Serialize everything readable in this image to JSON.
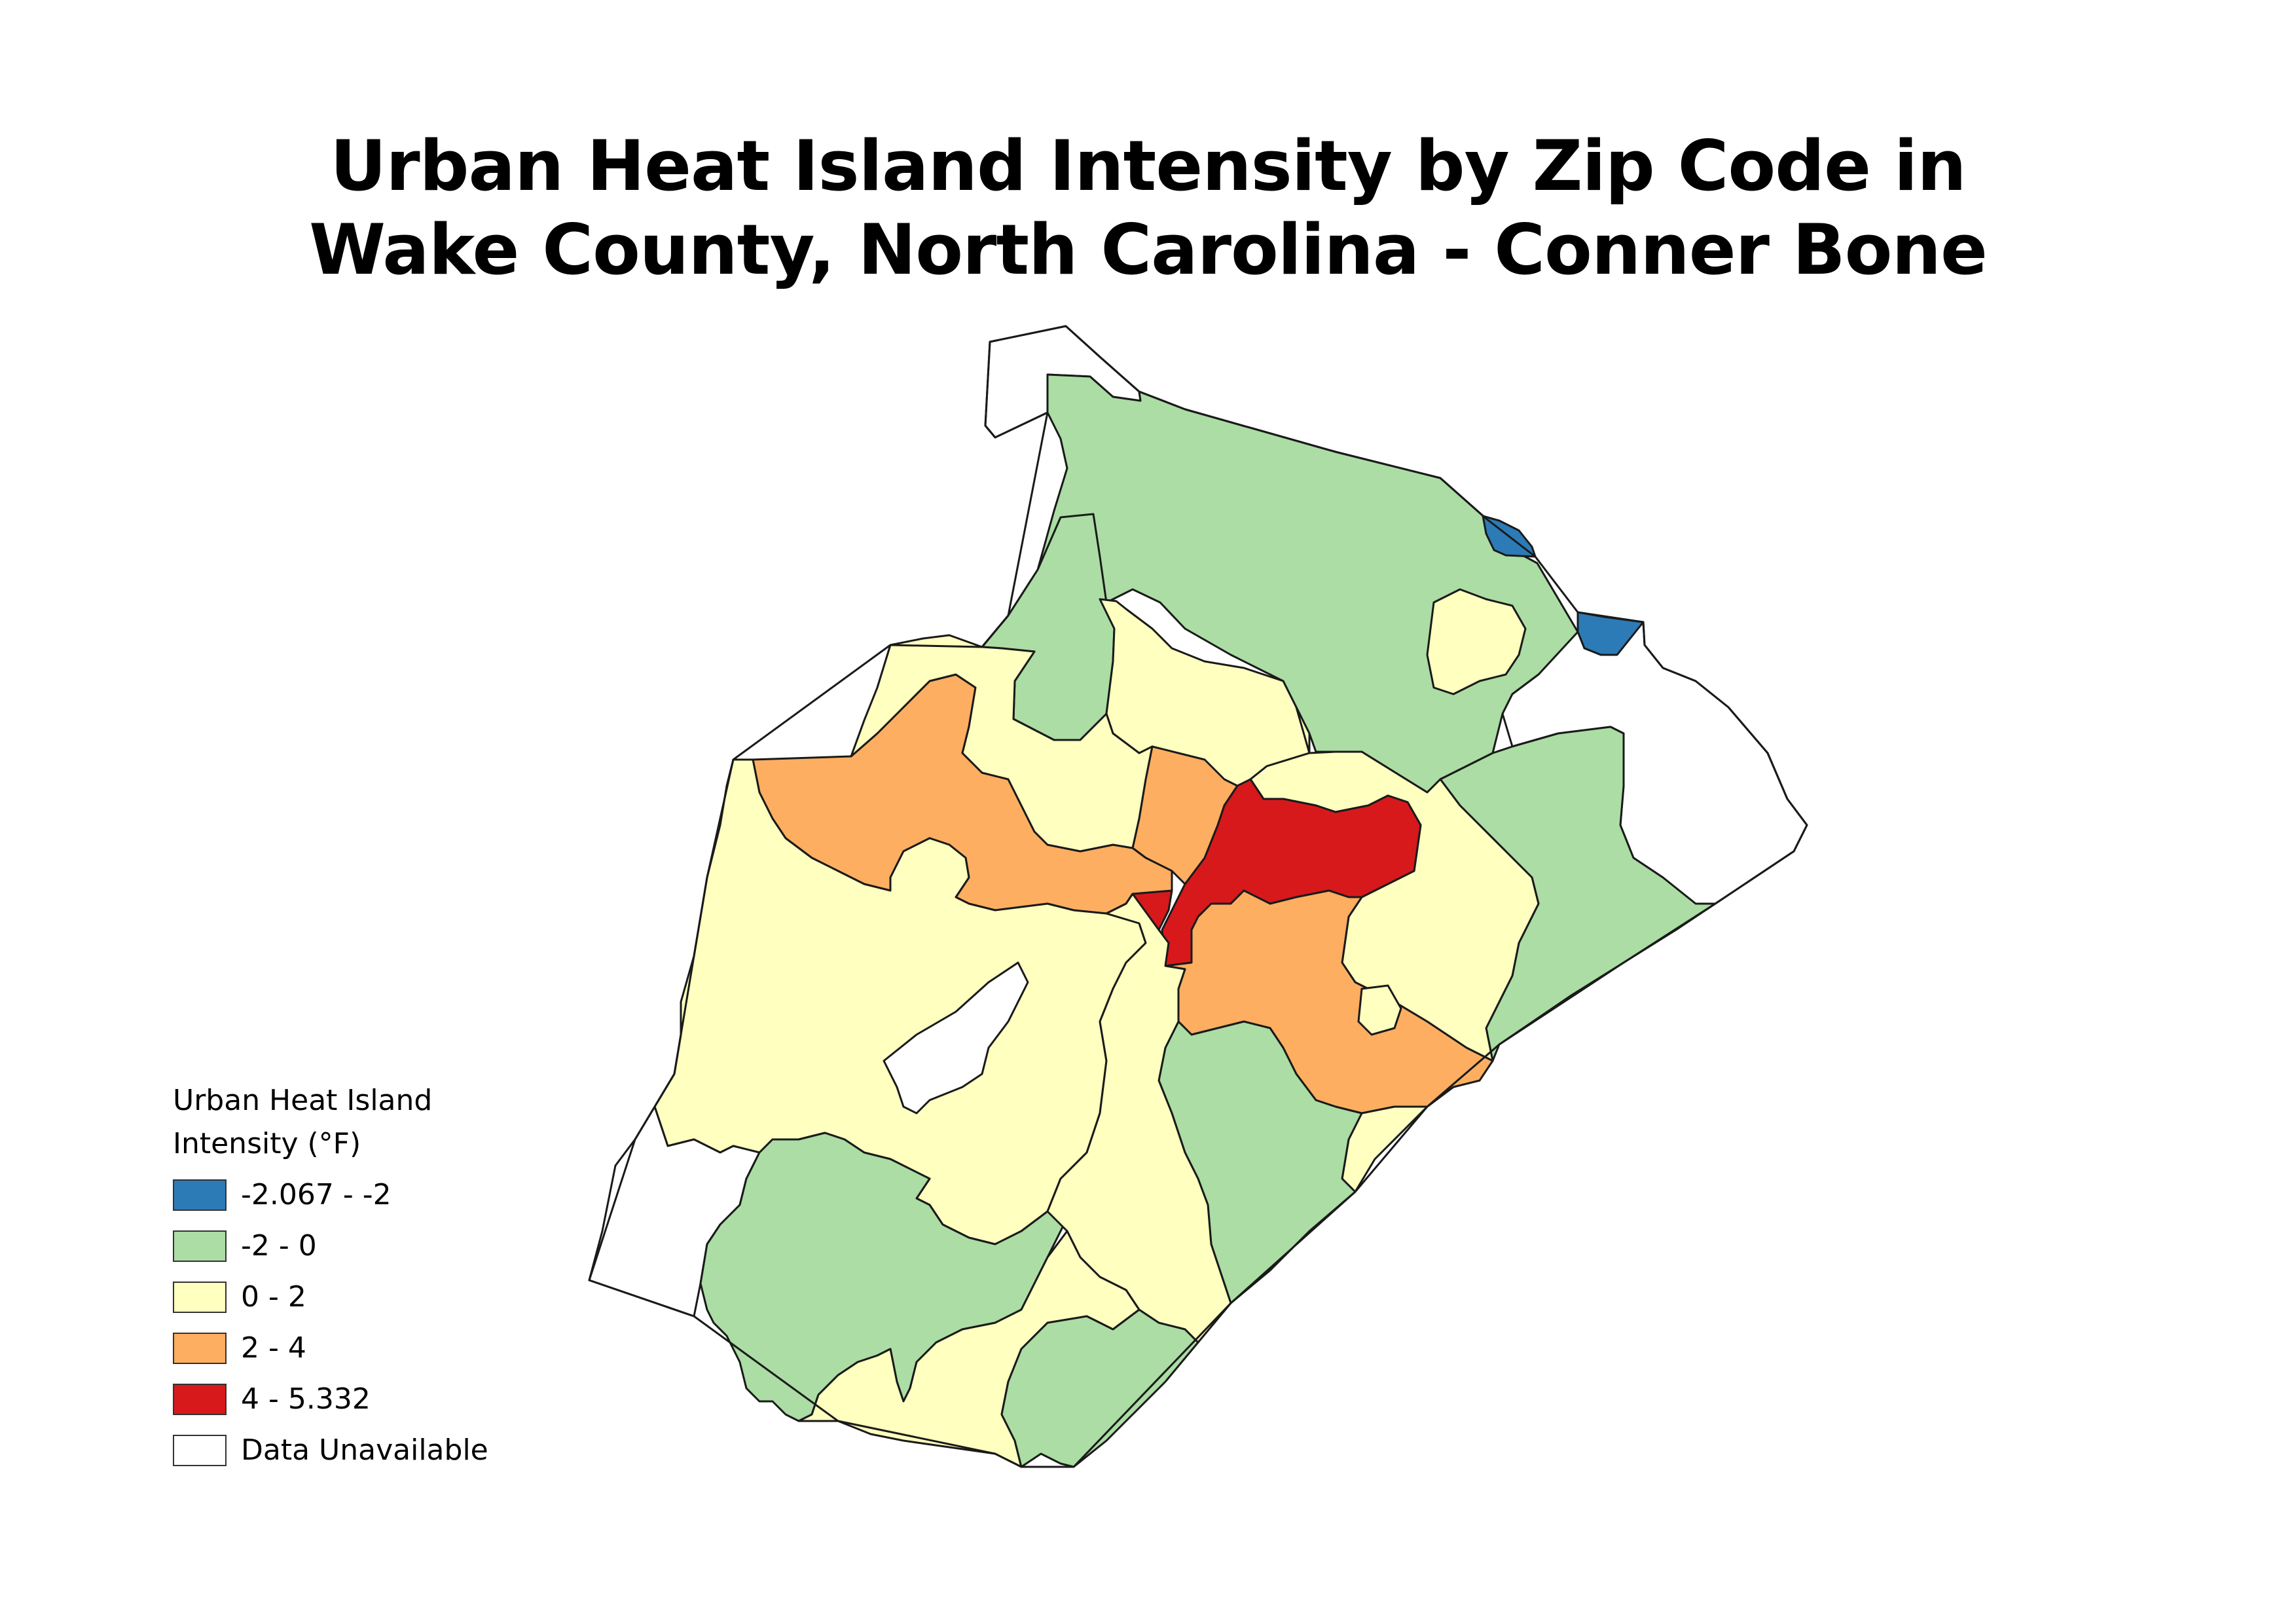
{
  "title": {
    "line1": "Urban Heat Island Intensity by Zip Code in",
    "line2": "Wake County, North Carolina - Conner Bone"
  },
  "legend": {
    "title_line1": "Urban Heat Island",
    "title_line2": "Intensity (°F)",
    "items": [
      {
        "label": "-2.067 - -2",
        "color": "#2c7bb6"
      },
      {
        "label": "-2 - 0",
        "color": "#abdda4"
      },
      {
        "label": "0 - 2",
        "color": "#ffffbf"
      },
      {
        "label": "2 - 4",
        "color": "#fdae61"
      },
      {
        "label": "4 - 5.332",
        "color": "#d7191c"
      },
      {
        "label": "Data Unavailable",
        "color": "#ffffff"
      }
    ]
  },
  "map": {
    "boundary_color": "#1a1a1a",
    "classes": {
      "very_cool": "#2c7bb6",
      "cool": "#abdda4",
      "neutral": "#ffffbf",
      "warm": "#fdae61",
      "hot": "#d7191c",
      "unavailable": "#ffffff"
    }
  }
}
